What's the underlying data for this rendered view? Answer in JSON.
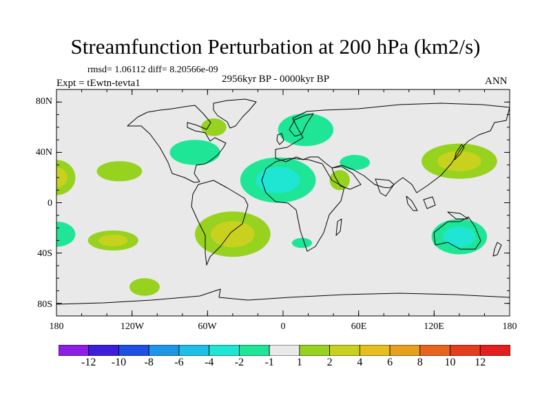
{
  "title": "Streamfunction Perturbation at 200 hPa (km2/s)",
  "stats": "rmsd= 1.06112 diff= 8.20566e-09",
  "experiment": "Expt = tEwtn-tevta1",
  "period": "2956kyr BP - 0000kyr BP",
  "season": "ANN",
  "lat_ticks": [
    "80N",
    "40N",
    "0",
    "40S",
    "80S"
  ],
  "lon_ticks": [
    "180",
    "120W",
    "60W",
    "0",
    "60E",
    "120E",
    "180"
  ],
  "colors": {
    "background": "#e9e9e9",
    "coast": "#000000",
    "palette": [
      "#8c1ee6",
      "#3c1edc",
      "#1e50e6",
      "#1e96e6",
      "#1ebee6",
      "#1ee6d2",
      "#1ee696",
      "#e9e9e9",
      "#96d21e",
      "#c8d21e",
      "#e6be1e",
      "#e6a01e",
      "#e6641e",
      "#e63c1e",
      "#e61e1e"
    ]
  },
  "colorbar_labels": [
    "-12",
    "-10",
    "-8",
    "-6",
    "-4",
    "-2",
    "-1",
    "1",
    "2",
    "4",
    "6",
    "8",
    "10",
    "12"
  ],
  "map_data": {
    "projection": "cylindrical equidistant",
    "lon_range": [
      -180,
      180
    ],
    "lat_range": [
      -90,
      90
    ],
    "field": "streamfunction perturbation",
    "units": "km2/s",
    "anomalies": [
      {
        "lon": -4,
        "lat": 18,
        "rlon": 30,
        "rlat": 18,
        "value": -2
      },
      {
        "lon": -70,
        "lat": 40,
        "rlon": 20,
        "rlat": 10,
        "value": -1
      },
      {
        "lon": 18,
        "lat": 58,
        "rlon": 22,
        "rlat": 13,
        "value": -1
      },
      {
        "lon": -55,
        "lat": 60,
        "rlon": 10,
        "rlat": 7,
        "value": 1
      },
      {
        "lon": -130,
        "lat": 25,
        "rlon": 18,
        "rlat": 8,
        "value": 1
      },
      {
        "lon": 57,
        "lat": 32,
        "rlon": 12,
        "rlat": 6,
        "value": -1
      },
      {
        "lon": 45,
        "lat": 18,
        "rlon": 8,
        "rlat": 8,
        "value": 1
      },
      {
        "lon": 140,
        "lat": 33,
        "rlon": 30,
        "rlat": 14,
        "value": 2
      },
      {
        "lon": -180,
        "lat": 20,
        "rlon": 15,
        "rlat": 14,
        "value": 2
      },
      {
        "lon": -180,
        "lat": -25,
        "rlon": 15,
        "rlat": 10,
        "value": -1
      },
      {
        "lon": -40,
        "lat": -25,
        "rlon": 30,
        "rlat": 18,
        "value": 2
      },
      {
        "lon": -135,
        "lat": -30,
        "rlon": 20,
        "rlat": 8,
        "value": 2
      },
      {
        "lon": -110,
        "lat": -67,
        "rlon": 12,
        "rlat": 7,
        "value": 1
      },
      {
        "lon": 140,
        "lat": -27,
        "rlon": 22,
        "rlat": 14,
        "value": -2
      },
      {
        "lon": 15,
        "lat": -32,
        "rlon": 8,
        "rlat": 4,
        "value": -1
      }
    ]
  }
}
